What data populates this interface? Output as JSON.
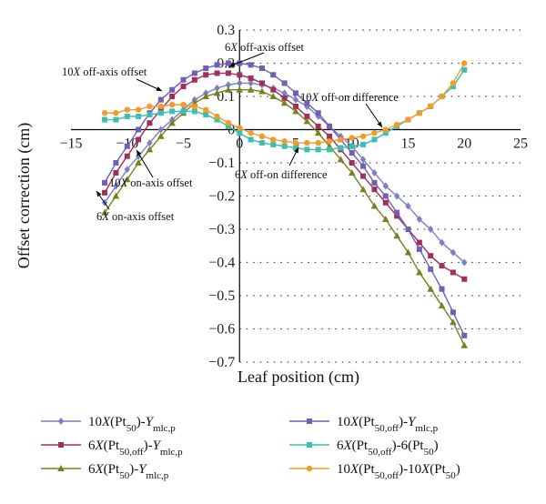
{
  "chart_data": {
    "type": "line",
    "xlabel": "Leaf position (cm)",
    "ylabel": "Offset correction (cm)",
    "xlim": [
      -15,
      25
    ],
    "ylim": [
      -0.7,
      0.3
    ],
    "xticks": [
      "−15",
      "−10",
      "−5",
      "0",
      "5",
      "10",
      "15",
      "20",
      "25"
    ],
    "yticks": [
      "−0.7",
      "−0.6",
      "−0.5",
      "−0.4",
      "−0.3",
      "−0.2",
      "−0.1",
      "0",
      "0.1",
      "0.2",
      "0.3"
    ],
    "grid": "horizontal dotted",
    "legend_position": "below",
    "x": [
      -12,
      -11,
      -10,
      -9,
      -8,
      -7,
      -6,
      -5,
      -4,
      -3,
      -2,
      -1,
      0,
      1,
      2,
      3,
      4,
      5,
      6,
      7,
      8,
      9,
      10,
      11,
      12,
      13,
      14,
      15,
      16,
      17,
      18,
      19,
      20
    ],
    "series": [
      {
        "name": "10X(Pt50)-Ymlc,p",
        "color": "#7b7fc4",
        "marker": "diamond",
        "values": [
          -0.22,
          -0.17,
          -0.12,
          -0.08,
          -0.04,
          0.0,
          0.03,
          0.06,
          0.09,
          0.11,
          0.125,
          0.135,
          0.14,
          0.14,
          0.135,
          0.125,
          0.11,
          0.09,
          0.07,
          0.04,
          0.01,
          -0.02,
          -0.05,
          -0.09,
          -0.13,
          -0.17,
          -0.2,
          -0.23,
          -0.27,
          -0.3,
          -0.34,
          -0.37,
          -0.4
        ]
      },
      {
        "name": "6X(Pt50,off)-Ymlc,p",
        "color": "#a0305a",
        "marker": "square",
        "values": [
          -0.19,
          -0.13,
          -0.08,
          -0.03,
          0.02,
          0.06,
          0.1,
          0.13,
          0.15,
          0.165,
          0.17,
          0.17,
          0.165,
          0.155,
          0.14,
          0.12,
          0.095,
          0.07,
          0.04,
          0.01,
          -0.02,
          -0.06,
          -0.1,
          -0.14,
          -0.18,
          -0.22,
          -0.26,
          -0.3,
          -0.34,
          -0.38,
          -0.41,
          -0.43,
          -0.45
        ]
      },
      {
        "name": "6X(Pt50)-Ymlc,p",
        "color": "#7a7f1f",
        "marker": "triangle",
        "values": [
          -0.25,
          -0.2,
          -0.15,
          -0.1,
          -0.06,
          -0.02,
          0.02,
          0.05,
          0.08,
          0.1,
          0.11,
          0.12,
          0.12,
          0.12,
          0.115,
          0.1,
          0.08,
          0.055,
          0.025,
          -0.01,
          -0.05,
          -0.09,
          -0.13,
          -0.18,
          -0.23,
          -0.27,
          -0.32,
          -0.37,
          -0.43,
          -0.48,
          -0.53,
          -0.58,
          -0.65
        ]
      },
      {
        "name": "10X(Pt50,off)-Ymlc,p",
        "color": "#6f5fb5",
        "marker": "square",
        "values": [
          -0.16,
          -0.1,
          -0.05,
          0.0,
          0.05,
          0.09,
          0.12,
          0.15,
          0.17,
          0.185,
          0.195,
          0.2,
          0.2,
          0.195,
          0.185,
          0.165,
          0.14,
          0.11,
          0.08,
          0.05,
          0.01,
          -0.03,
          -0.07,
          -0.11,
          -0.16,
          -0.2,
          -0.25,
          -0.3,
          -0.36,
          -0.42,
          -0.48,
          -0.55,
          -0.62
        ]
      },
      {
        "name": "6X(Pt50,off)-6(Pt50)",
        "color": "#3cbfb0",
        "marker": "square",
        "values": [
          0.03,
          0.03,
          0.04,
          0.04,
          0.045,
          0.05,
          0.055,
          0.055,
          0.055,
          0.045,
          0.03,
          0.01,
          -0.01,
          -0.03,
          -0.04,
          -0.045,
          -0.05,
          -0.055,
          -0.06,
          -0.06,
          -0.06,
          -0.055,
          -0.05,
          -0.045,
          -0.03,
          -0.01,
          0.01,
          0.03,
          0.05,
          0.07,
          0.1,
          0.13,
          0.18
        ]
      },
      {
        "name": "10X(Pt50,off)-10X(Pt50)",
        "color": "#f39a2c",
        "marker": "circle",
        "values": [
          0.05,
          0.05,
          0.06,
          0.06,
          0.07,
          0.07,
          0.075,
          0.075,
          0.07,
          0.06,
          0.04,
          0.02,
          0.005,
          -0.01,
          -0.02,
          -0.03,
          -0.035,
          -0.04,
          -0.04,
          -0.04,
          -0.035,
          -0.03,
          -0.025,
          -0.02,
          -0.01,
          0.0,
          0.015,
          0.03,
          0.05,
          0.07,
          0.1,
          0.14,
          0.2
        ]
      }
    ],
    "annotations": [
      {
        "text": "6X off-axis offset"
      },
      {
        "text": "10X off-axis offset"
      },
      {
        "text": "10X off-on difference"
      },
      {
        "text": "10X on-axis offset"
      },
      {
        "text": "6X off-on difference"
      },
      {
        "text": "6X on-axis offset"
      }
    ],
    "legend_entries": [
      {
        "main": "10X(Pt",
        "sub": "50",
        "tail": ")-Y",
        "sub2": "mlc,p"
      },
      {
        "main": "10X(Pt",
        "sub": "50,off",
        "tail": ")-Y",
        "sub2": "mlc,p"
      },
      {
        "main": "6X(Pt",
        "sub": "50,off",
        "tail": ")-Y",
        "sub2": "mlc,p"
      },
      {
        "main": "6X(Pt",
        "sub": "50,off",
        "tail": ")-6(Pt",
        "sub2": "50",
        "end": ")"
      },
      {
        "main": "6X(Pt",
        "sub": "50",
        "tail": ")-Y",
        "sub2": "mlc,p"
      },
      {
        "main": "10X(Pt",
        "sub": "50,off",
        "tail": ")-10X(Pt",
        "sub2": "50",
        "end": ")"
      }
    ]
  }
}
